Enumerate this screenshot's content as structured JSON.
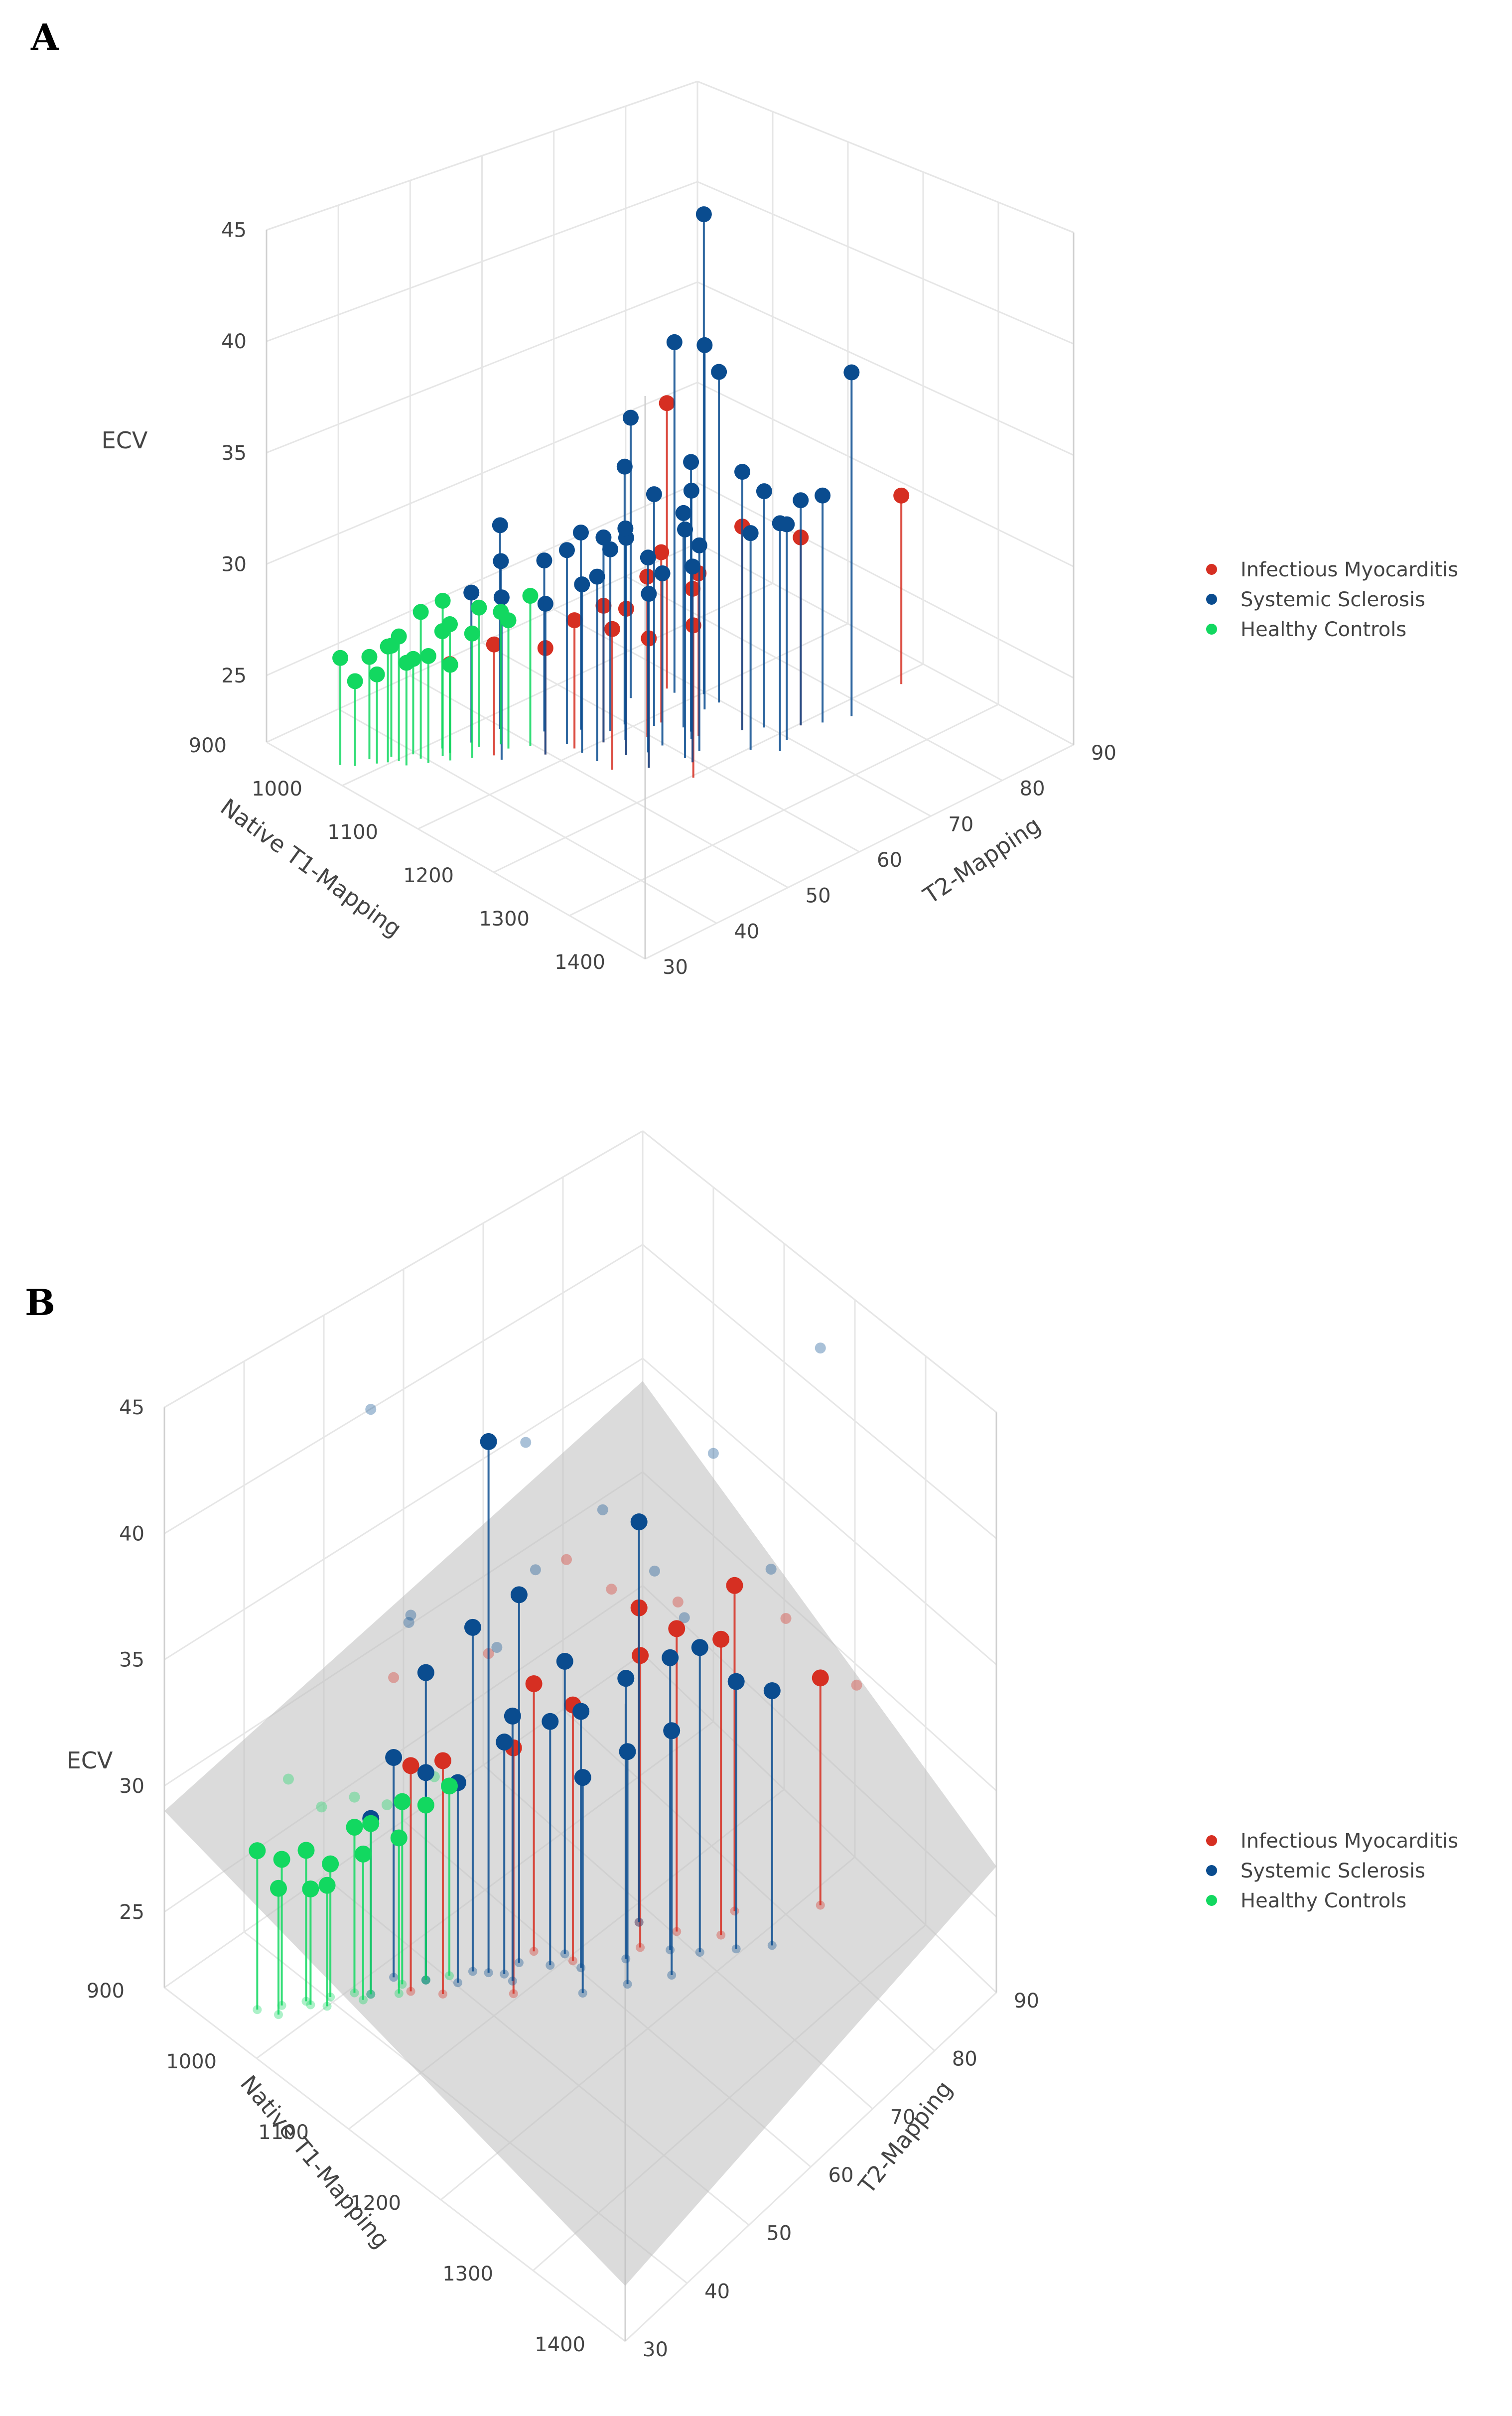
{
  "chart_data": [
    {
      "panel": "A",
      "type": "scatter",
      "subtype": "3d-scatter-with-droplines",
      "title": "",
      "xlabel": "Native T1-Mapping",
      "ylabel": "T2-Mapping",
      "zlabel": "ECV",
      "xlim": [
        900,
        1400
      ],
      "ylim": [
        30,
        90
      ],
      "zlim": [
        22,
        45
      ],
      "xticks": [
        "900",
        "1000",
        "1100",
        "1200",
        "1300",
        "1400"
      ],
      "yticks": [
        "30",
        "40",
        "50",
        "60",
        "70",
        "80",
        "90"
      ],
      "zticks": [
        "25",
        "30",
        "35",
        "40",
        "45"
      ],
      "colors": {
        "Infectious Myocarditis": "#d62f22",
        "Systemic Sclerosis": "#0a4c8f",
        "Healthy Controls": "#12d860"
      },
      "legend_position": "right",
      "series": [
        {
          "name": "Infectious Myocarditis",
          "points": [
            [
              1180,
              75,
              29.8
            ],
            [
              1190,
              88,
              30.0
            ],
            [
              1050,
              70,
              34.5
            ],
            [
              1150,
              70,
              30.5
            ],
            [
              1090,
              65,
              29.0
            ],
            [
              1100,
              62,
              28.5
            ],
            [
              1110,
              58,
              27.8
            ],
            [
              1060,
              52,
              26.0
            ],
            [
              1180,
              60,
              28.0
            ],
            [
              1160,
              62,
              29.0
            ],
            [
              1120,
              55,
              27.5
            ],
            [
              1030,
              48,
              26.2
            ],
            [
              1000,
              45,
              25.2
            ],
            [
              1070,
              55,
              27.0
            ],
            [
              1130,
              66,
              28.6
            ],
            [
              1080,
              58,
              27.4
            ],
            [
              1140,
              58,
              27.0
            ]
          ]
        },
        {
          "name": "Systemic Sclerosis",
          "points": [
            [
              1200,
              80,
              37.0
            ],
            [
              1080,
              72,
              43.5
            ],
            [
              1060,
              70,
              37.5
            ],
            [
              1100,
              72,
              36.5
            ],
            [
              1100,
              70,
              38.0
            ],
            [
              1040,
              66,
              34.2
            ],
            [
              1070,
              62,
              33.0
            ],
            [
              1120,
              66,
              33.5
            ],
            [
              1150,
              70,
              33.0
            ],
            [
              1160,
              72,
              32.0
            ],
            [
              1180,
              75,
              31.5
            ],
            [
              1190,
              77,
              31.6
            ],
            [
              1130,
              65,
              32.5
            ],
            [
              1150,
              62,
              31.5
            ],
            [
              1110,
              58,
              31.0
            ],
            [
              1090,
              60,
              30.8
            ],
            [
              1080,
              58,
              30.5
            ],
            [
              1060,
              55,
              30.0
            ],
            [
              1000,
              52,
              30.5
            ],
            [
              1020,
              50,
              29.5
            ],
            [
              1040,
              48,
              28.5
            ],
            [
              1060,
              52,
              28.0
            ],
            [
              1080,
              55,
              28.8
            ],
            [
              1100,
              55,
              29.5
            ],
            [
              1120,
              60,
              30.0
            ],
            [
              1140,
              58,
              29.0
            ],
            [
              1160,
              62,
              30.0
            ],
            [
              1180,
              68,
              31.0
            ],
            [
              1200,
              70,
              31.5
            ],
            [
              1000,
              48,
              28.0
            ],
            [
              1120,
              62,
              29.0
            ],
            [
              1110,
              66,
              31.0
            ],
            [
              1090,
              64,
              31.8
            ],
            [
              1050,
              58,
              30.2
            ],
            [
              1030,
              55,
              29.0
            ],
            [
              1070,
              60,
              29.5
            ],
            [
              1150,
              64,
              30.5
            ],
            [
              1190,
              72,
              31.0
            ]
          ]
        },
        {
          "name": "Healthy Controls",
          "points": [
            [
              950,
              35,
              26.0
            ],
            [
              960,
              38,
              25.8
            ],
            [
              970,
              40,
              26.2
            ],
            [
              980,
              42,
              25.5
            ],
            [
              990,
              45,
              26.5
            ],
            [
              1000,
              45,
              27.0
            ],
            [
              1010,
              48,
              27.5
            ],
            [
              1020,
              50,
              27.2
            ],
            [
              990,
              42,
              27.8
            ],
            [
              980,
              40,
              26.8
            ],
            [
              960,
              36,
              25.0
            ],
            [
              970,
              38,
              25.2
            ],
            [
              1000,
              42,
              26.0
            ],
            [
              1010,
              44,
              25.5
            ],
            [
              1020,
              46,
              26.8
            ],
            [
              1030,
              50,
              27.0
            ],
            [
              1040,
              52,
              28.0
            ],
            [
              1000,
              44,
              28.2
            ],
            [
              990,
              40,
              25.8
            ],
            [
              975,
              39,
              26.4
            ]
          ]
        }
      ]
    },
    {
      "panel": "B",
      "type": "scatter",
      "subtype": "3d-scatter-with-fitted-plane",
      "title": "",
      "xlabel": "Native T1-Mapping",
      "ylabel": "T2-Mapping",
      "zlabel": "ECV",
      "xlim": [
        900,
        1400
      ],
      "ylim": [
        30,
        90
      ],
      "zlim": [
        22,
        45
      ],
      "xticks": [
        "900",
        "1000",
        "1100",
        "1200",
        "1300",
        "1400"
      ],
      "yticks": [
        "30",
        "40",
        "50",
        "60",
        "70",
        "80",
        "90"
      ],
      "zticks": [
        "25",
        "30",
        "35",
        "40",
        "45"
      ],
      "plane_ecv": 30,
      "colors": {
        "Infectious Myocarditis": "#d62f22",
        "Systemic Sclerosis": "#0a4c8f",
        "Healthy Controls": "#12d860"
      },
      "legend_position": "right",
      "series": [
        {
          "name": "Infectious Myocarditis",
          "points": [
            [
              1200,
              85,
              30.5
            ],
            [
              1150,
              78,
              34.5
            ],
            [
              1130,
              72,
              33.5
            ],
            [
              1100,
              70,
              34.0
            ],
            [
              1060,
              60,
              32.0
            ],
            [
              1120,
              68,
              33.0
            ],
            [
              1080,
              55,
              31.0
            ],
            [
              1040,
              50,
              30.5
            ],
            [
              1020,
              48,
              30.2
            ],
            [
              1160,
              75,
              33.2
            ],
            [
              1090,
              62,
              31.5
            ]
          ]
        },
        {
          "name": "Systemic Sclerosis",
          "points": [
            [
              1050,
              55,
              42.5
            ],
            [
              1100,
              70,
              37.5
            ],
            [
              1060,
              58,
              36.0
            ],
            [
              1040,
              54,
              35.0
            ],
            [
              1080,
              62,
              33.0
            ],
            [
              1020,
              50,
              33.5
            ],
            [
              1120,
              66,
              32.5
            ],
            [
              1140,
              70,
              33.0
            ],
            [
              1160,
              72,
              33.5
            ],
            [
              1180,
              75,
              32.0
            ],
            [
              1100,
              62,
              31.5
            ],
            [
              1080,
              60,
              31.0
            ],
            [
              1060,
              56,
              30.5
            ],
            [
              1000,
              48,
              30.0
            ],
            [
              1020,
              50,
              29.5
            ],
            [
              1040,
              52,
              29.2
            ],
            [
              1140,
              64,
              30.5
            ],
            [
              1160,
              68,
              31.0
            ],
            [
              1200,
              78,
              31.5
            ],
            [
              1120,
              60,
              29.8
            ],
            [
              1000,
              45,
              28.2
            ],
            [
              1070,
              56,
              31.8
            ]
          ]
        },
        {
          "name": "Healthy Controls",
          "points": [
            [
              950,
              36,
              27.5
            ],
            [
              960,
              38,
              27.0
            ],
            [
              970,
              40,
              27.2
            ],
            [
              980,
              42,
              26.5
            ],
            [
              990,
              44,
              27.8
            ],
            [
              1000,
              45,
              28.0
            ],
            [
              1010,
              48,
              28.5
            ],
            [
              1020,
              50,
              28.2
            ],
            [
              1030,
              52,
              28.8
            ],
            [
              985,
              41,
              26.0
            ],
            [
              965,
              37,
              26.2
            ],
            [
              975,
              40,
              25.8
            ],
            [
              1000,
              44,
              27.0
            ],
            [
              1015,
              47,
              27.4
            ]
          ]
        }
      ],
      "projected_background": {
        "Infectious Myocarditis": [
          [
            1100,
            60,
            38.0
          ],
          [
            1150,
            70,
            35.5
          ],
          [
            1050,
            55,
            34.0
          ],
          [
            1200,
            80,
            34.0
          ],
          [
            1080,
            58,
            33.0
          ],
          [
            1120,
            64,
            36.5
          ],
          [
            1250,
            85,
            31.5
          ],
          [
            1000,
            48,
            33.2
          ]
        ],
        "Systemic Sclerosis": [
          [
            1000,
            45,
            44.5
          ],
          [
            1050,
            60,
            41.5
          ],
          [
            1100,
            65,
            39.0
          ],
          [
            1200,
            85,
            44.0
          ],
          [
            1150,
            75,
            40.5
          ],
          [
            1080,
            58,
            37.5
          ],
          [
            1120,
            70,
            36.0
          ],
          [
            1000,
            50,
            35.0
          ],
          [
            1060,
            55,
            34.5
          ],
          [
            1180,
            80,
            35.5
          ],
          [
            1140,
            72,
            34.2
          ],
          [
            1020,
            48,
            36.2
          ]
        ],
        "Healthy Controls": [
          [
            950,
            40,
            29.5
          ],
          [
            970,
            42,
            28.5
          ],
          [
            990,
            44,
            29.0
          ],
          [
            1010,
            46,
            28.8
          ],
          [
            1030,
            50,
            29.6
          ]
        ]
      }
    }
  ]
}
